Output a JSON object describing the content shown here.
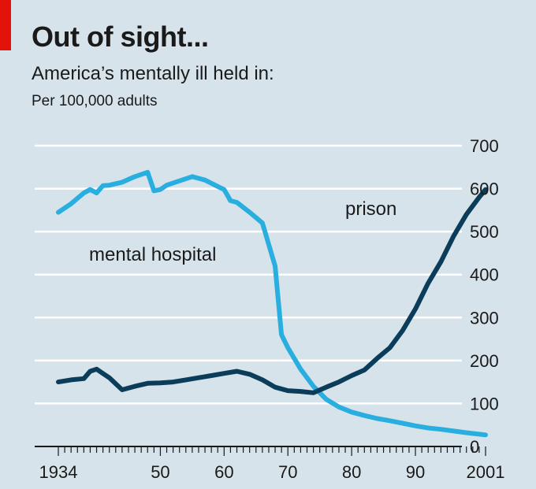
{
  "header": {
    "title": "Out of sight...",
    "subtitle": "America’s mentally ill held in:",
    "unit": "Per 100,000 adults"
  },
  "colors": {
    "background": "#d7e3ea",
    "accent_red": "#e3120b",
    "mental_hospital": "#29aee0",
    "prison": "#0b3d5a",
    "grid": "#ffffff"
  },
  "chart_data": {
    "type": "line",
    "title": "Out of sight...",
    "subtitle": "America’s mentally ill held in:",
    "ylabel": "Per 100,000 adults",
    "xlabel": "",
    "xlim": [
      1934,
      2001
    ],
    "ylim": [
      0,
      700
    ],
    "x_tick_labels": [
      {
        "value": 1934,
        "label": "1934"
      },
      {
        "value": 1950,
        "label": "50"
      },
      {
        "value": 1960,
        "label": "60"
      },
      {
        "value": 1970,
        "label": "70"
      },
      {
        "value": 1980,
        "label": "80"
      },
      {
        "value": 1990,
        "label": "90"
      },
      {
        "value": 2001,
        "label": "2001"
      }
    ],
    "y_ticks": [
      0,
      100,
      200,
      300,
      400,
      500,
      600,
      700
    ],
    "grid": true,
    "series": [
      {
        "name": "mental hospital",
        "color": "#29aee0",
        "x": [
          1934,
          1936,
          1938,
          1939,
          1940,
          1941,
          1942,
          1944,
          1946,
          1948,
          1949,
          1950,
          1951,
          1953,
          1955,
          1957,
          1959,
          1960,
          1961,
          1962,
          1964,
          1966,
          1968,
          1969,
          1970,
          1972,
          1974,
          1976,
          1978,
          1980,
          1982,
          1984,
          1986,
          1988,
          1990,
          1992,
          1994,
          1996,
          1998,
          2001
        ],
        "y": [
          545,
          565,
          590,
          598,
          590,
          607,
          608,
          615,
          628,
          638,
          595,
          598,
          608,
          618,
          628,
          620,
          605,
          598,
          572,
          568,
          545,
          520,
          420,
          260,
          230,
          180,
          140,
          110,
          92,
          80,
          72,
          65,
          60,
          54,
          48,
          43,
          40,
          36,
          32,
          27
        ]
      },
      {
        "name": "prison",
        "color": "#0b3d5a",
        "x": [
          1934,
          1936,
          1938,
          1939,
          1940,
          1942,
          1944,
          1946,
          1948,
          1950,
          1952,
          1954,
          1956,
          1958,
          1960,
          1962,
          1964,
          1966,
          1968,
          1970,
          1972,
          1974,
          1976,
          1978,
          1980,
          1982,
          1984,
          1986,
          1988,
          1990,
          1992,
          1994,
          1996,
          1998,
          2000,
          2001
        ],
        "y": [
          150,
          155,
          158,
          175,
          180,
          160,
          132,
          140,
          147,
          148,
          150,
          155,
          160,
          165,
          170,
          175,
          168,
          155,
          138,
          130,
          128,
          125,
          138,
          150,
          165,
          178,
          205,
          230,
          270,
          320,
          380,
          430,
          490,
          540,
          580,
          598
        ]
      }
    ],
    "annotations": [
      {
        "text": "mental hospital",
        "series": "mental hospital"
      },
      {
        "text": "prison",
        "series": "prison"
      }
    ]
  }
}
